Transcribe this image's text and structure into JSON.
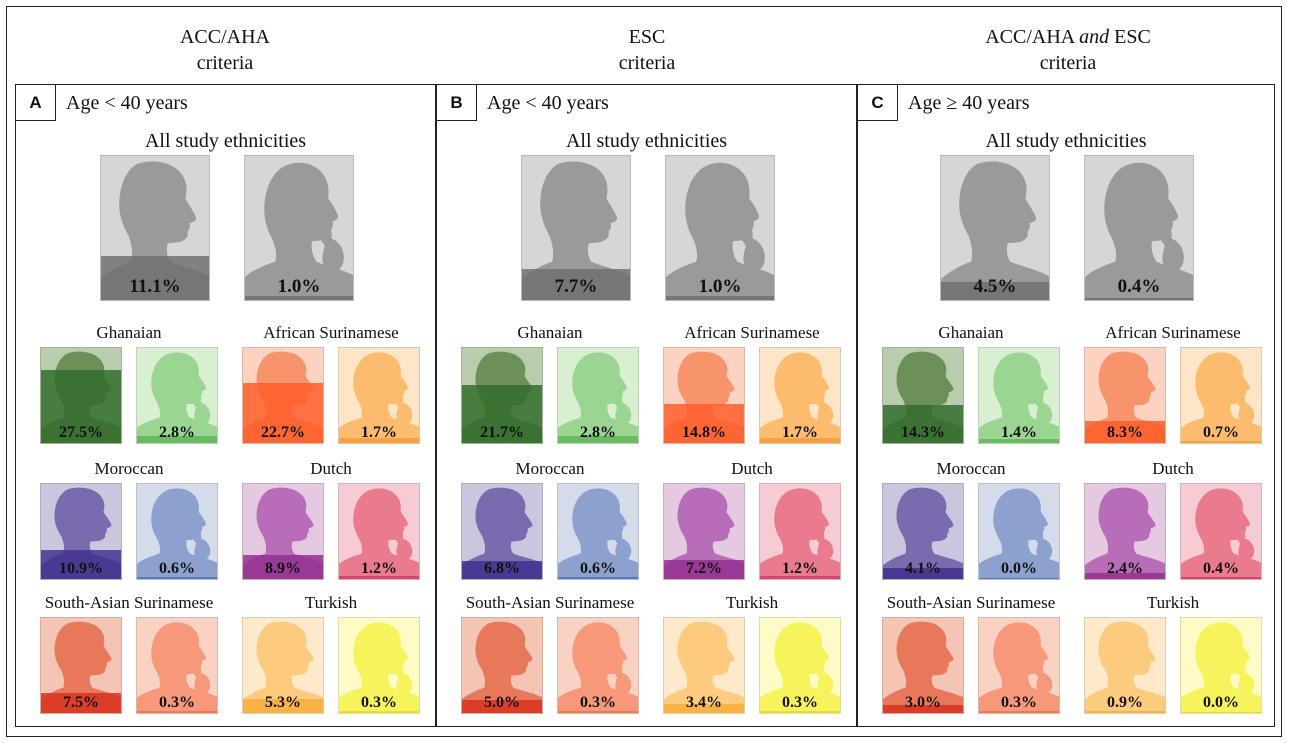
{
  "headers": [
    {
      "line1": "ACC/AHA",
      "line2": "criteria"
    },
    {
      "line1": "ESC",
      "line2": "criteria"
    },
    {
      "line1": "ACC/AHA",
      "line1_em": "and",
      "line1_tail": "ESC",
      "line2": "criteria"
    }
  ],
  "all_label": "All study ethnicities",
  "panels": [
    {
      "letter": "A",
      "age": "Age < 40 years",
      "all": {
        "male": 11.1,
        "female": 1.0,
        "male_label": "11.1%",
        "female_label": "1.0%"
      },
      "groups": [
        {
          "name": "Ghanaian",
          "male": 27.5,
          "female": 2.8,
          "male_label": "27.5%",
          "female_label": "2.8%"
        },
        {
          "name": "African Surinamese",
          "male": 22.7,
          "female": 1.7,
          "male_label": "22.7%",
          "female_label": "1.7%"
        },
        {
          "name": "Moroccan",
          "male": 10.9,
          "female": 0.6,
          "male_label": "10.9%",
          "female_label": "0.6%"
        },
        {
          "name": "Dutch",
          "male": 8.9,
          "female": 1.2,
          "male_label": "8.9%",
          "female_label": "1.2%"
        },
        {
          "name": "South-Asian Surinamese",
          "male": 7.5,
          "female": 0.3,
          "male_label": "7.5%",
          "female_label": "0.3%"
        },
        {
          "name": "Turkish",
          "male": 5.3,
          "female": 0.3,
          "male_label": "5.3%",
          "female_label": "0.3%"
        }
      ]
    },
    {
      "letter": "B",
      "age": "Age < 40 years",
      "all": {
        "male": 7.7,
        "female": 1.0,
        "male_label": "7.7%",
        "female_label": "1.0%"
      },
      "groups": [
        {
          "name": "Ghanaian",
          "male": 21.7,
          "female": 2.8,
          "male_label": "21.7%",
          "female_label": "2.8%"
        },
        {
          "name": "African Surinamese",
          "male": 14.8,
          "female": 1.7,
          "male_label": "14.8%",
          "female_label": "1.7%"
        },
        {
          "name": "Moroccan",
          "male": 6.8,
          "female": 0.6,
          "male_label": "6.8%",
          "female_label": "0.6%"
        },
        {
          "name": "Dutch",
          "male": 7.2,
          "female": 1.2,
          "male_label": "7.2%",
          "female_label": "1.2%"
        },
        {
          "name": "South-Asian Surinamese",
          "male": 5.0,
          "female": 0.3,
          "male_label": "5.0%",
          "female_label": "0.3%"
        },
        {
          "name": "Turkish",
          "male": 3.4,
          "female": 0.3,
          "male_label": "3.4%",
          "female_label": "0.3%"
        }
      ]
    },
    {
      "letter": "C",
      "age": "Age ≥ 40 years",
      "all": {
        "male": 4.5,
        "female": 0.4,
        "male_label": "4.5%",
        "female_label": "0.4%"
      },
      "groups": [
        {
          "name": "Ghanaian",
          "male": 14.3,
          "female": 1.4,
          "male_label": "14.3%",
          "female_label": "1.4%"
        },
        {
          "name": "African Surinamese",
          "male": 8.3,
          "female": 0.7,
          "male_label": "8.3%",
          "female_label": "0.7%"
        },
        {
          "name": "Moroccan",
          "male": 4.1,
          "female": 0.0,
          "male_label": "4.1%",
          "female_label": "0.0%"
        },
        {
          "name": "Dutch",
          "male": 2.4,
          "female": 0.4,
          "male_label": "2.4%",
          "female_label": "0.4%"
        },
        {
          "name": "South-Asian Surinamese",
          "male": 3.0,
          "female": 0.3,
          "male_label": "3.0%",
          "female_label": "0.3%"
        },
        {
          "name": "Turkish",
          "male": 0.9,
          "female": 0.0,
          "male_label": "0.9%",
          "female_label": "0.0%"
        }
      ]
    }
  ],
  "colors": {
    "all": {
      "bg": "#d6d6d6",
      "sil": "#9a9a9a",
      "fill": "#6e6e6e"
    },
    "Ghanaian": {
      "male_bg": "#b9ccae",
      "male_sil": "#6b9159",
      "male_fill": "#2f6b2a",
      "female_bg": "#d8efd1",
      "female_sil": "#9ad692",
      "female_fill": "#5fb35a"
    },
    "African Surinamese": {
      "male_bg": "#fcd2c0",
      "male_sil": "#f7946c",
      "male_fill": "#ff5a26",
      "female_bg": "#fde5c8",
      "female_sil": "#fdbb6e",
      "female_fill": "#f79a3a"
    },
    "Moroccan": {
      "male_bg": "#cbc5de",
      "male_sil": "#7a6aae",
      "male_fill": "#3f2e8e",
      "female_bg": "#d5dbeb",
      "female_sil": "#8da1cf",
      "female_fill": "#4f6db8"
    },
    "Dutch": {
      "male_bg": "#e4c9e0",
      "male_sil": "#b76db7",
      "male_fill": "#922d8f",
      "female_bg": "#f6cbd3",
      "female_sil": "#ea7b8e",
      "female_fill": "#d63a5c"
    },
    "South-Asian Surinamese": {
      "male_bg": "#f4c4b4",
      "male_sil": "#e8785a",
      "male_fill": "#d9301e",
      "female_bg": "#f9d2c4",
      "female_sil": "#f7987a",
      "female_fill": "#f2724e"
    },
    "Turkish": {
      "male_bg": "#feeacb",
      "male_sil": "#fdcb7d",
      "male_fill": "#f9ab3b",
      "female_bg": "#fefbc6",
      "female_sil": "#f7f35c",
      "female_fill": "#e6d52e"
    }
  },
  "icons": {
    "male": "male-head-silhouette-icon",
    "female": "female-head-silhouette-icon"
  }
}
